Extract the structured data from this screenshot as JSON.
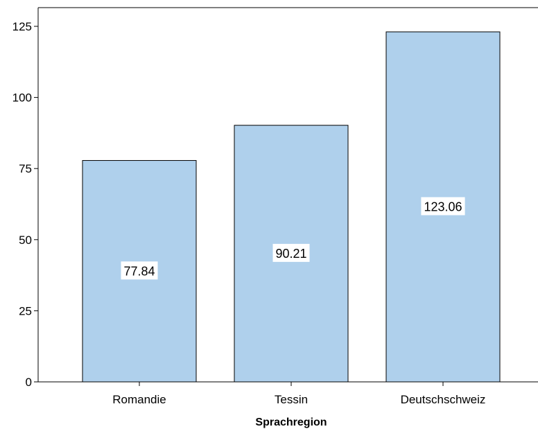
{
  "chart_data": {
    "type": "bar",
    "categories": [
      "Romandie",
      "Tessin",
      "Deutschschweiz"
    ],
    "values": [
      77.84,
      90.21,
      123.06
    ],
    "data_labels": [
      "77.84",
      "90.21",
      "123.06"
    ],
    "title": "",
    "xlabel": "Sprachregion",
    "ylabel": "",
    "ylim": [
      0,
      125
    ],
    "yticks": [
      "0",
      "25",
      "50",
      "75",
      "100",
      "125"
    ],
    "grid": false,
    "legend": "none",
    "bar_color": "#afd0ec",
    "bar_edge_color": "#000000",
    "label_background": "#ffffff"
  }
}
